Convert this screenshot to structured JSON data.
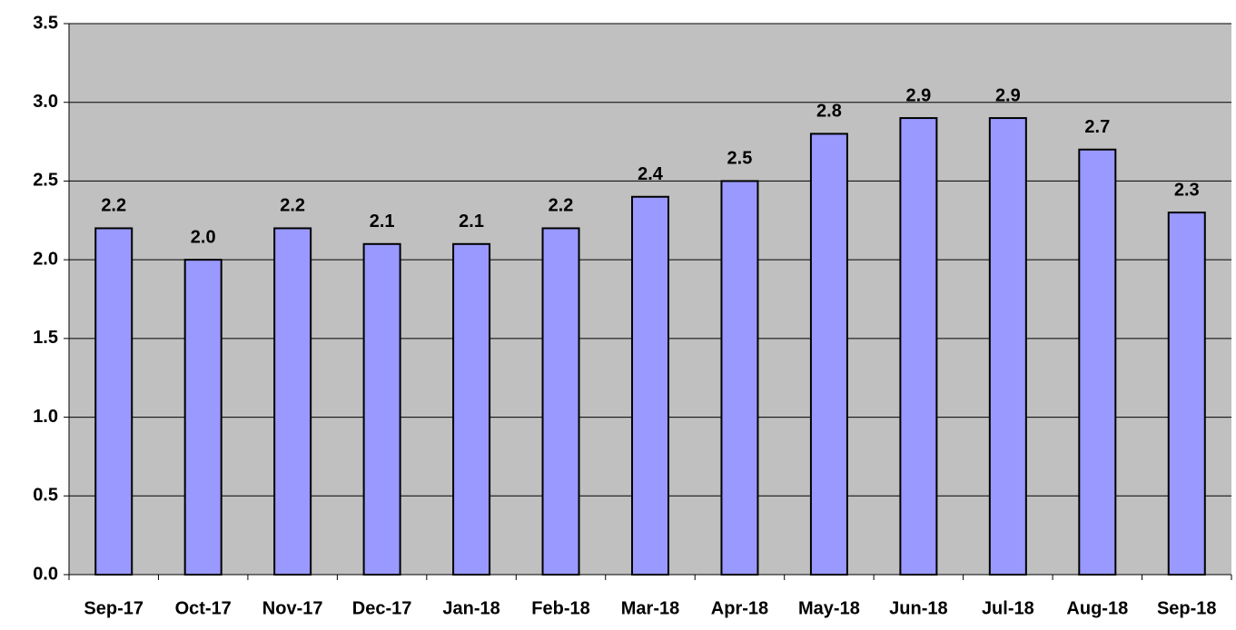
{
  "chart_data": {
    "type": "bar",
    "categories": [
      "Sep-17",
      "Oct-17",
      "Nov-17",
      "Dec-17",
      "Jan-18",
      "Feb-18",
      "Mar-18",
      "Apr-18",
      "May-18",
      "Jun-18",
      "Jul-18",
      "Aug-18",
      "Sep-18"
    ],
    "values": [
      2.2,
      2.0,
      2.2,
      2.1,
      2.1,
      2.2,
      2.4,
      2.5,
      2.8,
      2.9,
      2.9,
      2.7,
      2.3
    ],
    "value_labels": [
      "2.2",
      "2.0",
      "2.2",
      "2.1",
      "2.1",
      "2.2",
      "2.4",
      "2.5",
      "2.8",
      "2.9",
      "2.9",
      "2.7",
      "2.3"
    ],
    "color": "#9999ff",
    "ylim": [
      0,
      3.5
    ],
    "yticks": [
      {
        "value": 0,
        "label": "0.0"
      },
      0.5,
      {
        "value": 1,
        "label": "1.0"
      },
      1.5,
      {
        "value": 2,
        "label": "2.0"
      },
      2.5,
      {
        "value": 3,
        "label": "3.0"
      },
      3.5
    ],
    "grid": true
  }
}
